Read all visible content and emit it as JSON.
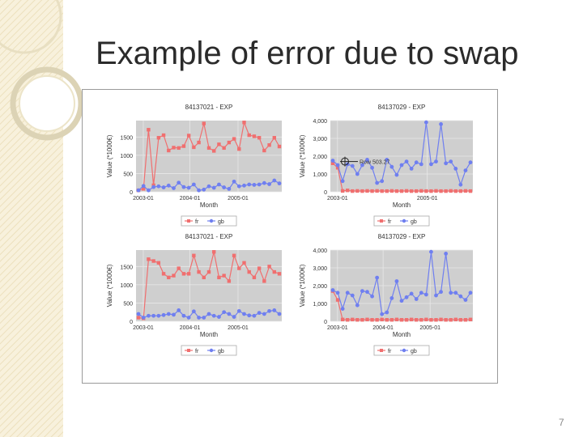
{
  "slide": {
    "title": "Example of error due to swap",
    "page_number": "7"
  },
  "colors": {
    "fr": "#f06f6f",
    "gb": "#6f7ff0",
    "plot_background": "#cfcfcf",
    "background_pattern": "#f4ecd2"
  },
  "chart_data": [
    {
      "type": "line",
      "title": "84137021 - EXP",
      "xlabel": "Month",
      "ylabel": "Value (*1000€)",
      "xticks": [
        "2003-01",
        "2004-01",
        "2005-01"
      ],
      "yticks": [
        "0",
        "500",
        "1000",
        "1500"
      ],
      "ylim": [
        0,
        1950
      ],
      "annotation": "",
      "legend": [
        "fr",
        "gb"
      ],
      "series": [
        {
          "name": "fr",
          "values": [
            40,
            80,
            1700,
            180,
            1480,
            1550,
            1130,
            1210,
            1200,
            1250,
            1540,
            1220,
            1350,
            1870,
            1200,
            1120,
            1300,
            1200,
            1350,
            1450,
            1170,
            1900,
            1550,
            1520,
            1480,
            1130,
            1280,
            1480,
            1240
          ]
        },
        {
          "name": "gb",
          "values": [
            40,
            160,
            40,
            130,
            150,
            120,
            170,
            100,
            250,
            130,
            110,
            200,
            40,
            60,
            150,
            110,
            200,
            120,
            80,
            280,
            150,
            170,
            200,
            190,
            200,
            240,
            210,
            310,
            230
          ]
        }
      ]
    },
    {
      "type": "line",
      "title": "84137029 - EXP",
      "xlabel": "Month",
      "ylabel": "Value (*1000€)",
      "xticks": [
        "2003-01",
        "2005-01"
      ],
      "yticks": [
        "0",
        "1,000",
        "2,000",
        "3,000",
        "4,000"
      ],
      "ylim": [
        0,
        4000
      ],
      "annotation": "Row 503.27",
      "legend": [
        "fr",
        "gb"
      ],
      "series": [
        {
          "name": "fr",
          "values": [
            1600,
            1350,
            50,
            80,
            40,
            50,
            40,
            50,
            40,
            50,
            40,
            40,
            50,
            40,
            40,
            50,
            40,
            40,
            50,
            40,
            40,
            50,
            40,
            40,
            50,
            40,
            40,
            50,
            40
          ]
        },
        {
          "name": "gb",
          "values": [
            1750,
            1500,
            600,
            1550,
            1450,
            1000,
            1500,
            1800,
            1350,
            500,
            600,
            1800,
            1400,
            950,
            1500,
            1700,
            1300,
            1650,
            1550,
            3900,
            1550,
            1700,
            3800,
            1600,
            1700,
            1300,
            400,
            1200,
            1650
          ]
        }
      ]
    },
    {
      "type": "line",
      "title": "84137021 - EXP",
      "xlabel": "Month",
      "ylabel": "Value (*1000€)",
      "xticks": [
        "2003-01",
        "2004-01",
        "2005-01"
      ],
      "yticks": [
        "0",
        "500",
        "1000",
        "1500"
      ],
      "ylim": [
        0,
        1950
      ],
      "annotation": "",
      "legend": [
        "fr",
        "gb"
      ],
      "series": [
        {
          "name": "fr",
          "values": [
            100,
            80,
            1700,
            1650,
            1600,
            1300,
            1200,
            1250,
            1450,
            1300,
            1300,
            1800,
            1350,
            1200,
            1350,
            1900,
            1200,
            1250,
            1100,
            1800,
            1450,
            1600,
            1350,
            1200,
            1450,
            1100,
            1500,
            1350,
            1300
          ]
        },
        {
          "name": "gb",
          "values": [
            200,
            100,
            150,
            150,
            150,
            170,
            200,
            180,
            300,
            150,
            100,
            270,
            100,
            100,
            200,
            150,
            120,
            250,
            200,
            120,
            280,
            200,
            160,
            150,
            230,
            200,
            280,
            300,
            200
          ]
        }
      ]
    },
    {
      "type": "line",
      "title": "84137029 - EXP",
      "xlabel": "Month",
      "ylabel": "Value (*1000€)",
      "xticks": [
        "2003-01",
        "2004-01",
        "2005-01"
      ],
      "yticks": [
        "0",
        "1,000",
        "2,000",
        "3,000",
        "4,000"
      ],
      "ylim": [
        0,
        4000
      ],
      "annotation": "",
      "legend": [
        "fr",
        "gb"
      ],
      "series": [
        {
          "name": "fr",
          "values": [
            1700,
            1200,
            100,
            80,
            100,
            80,
            80,
            100,
            80,
            80,
            100,
            80,
            80,
            100,
            80,
            80,
            100,
            80,
            80,
            100,
            80,
            80,
            100,
            80,
            80,
            100,
            80,
            80,
            100
          ]
        },
        {
          "name": "gb",
          "values": [
            1750,
            1600,
            700,
            1600,
            1450,
            900,
            1700,
            1650,
            1400,
            2450,
            400,
            500,
            1300,
            2250,
            1150,
            1350,
            1550,
            1250,
            1600,
            1500,
            3900,
            1450,
            1650,
            3800,
            1600,
            1600,
            1400,
            1200,
            1600
          ]
        }
      ]
    }
  ]
}
